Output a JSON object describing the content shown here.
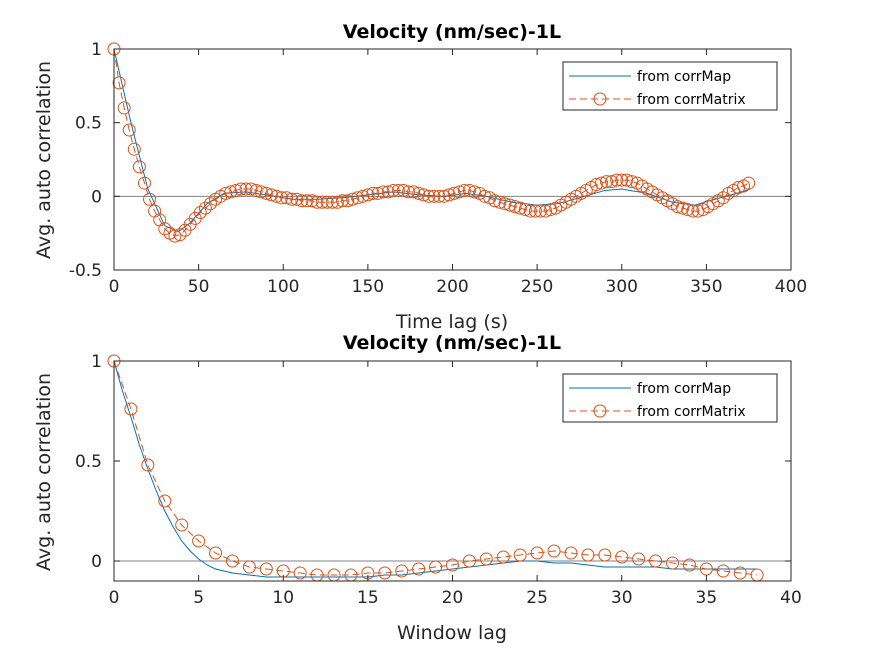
{
  "colors": {
    "corrMap": "#0072BD",
    "corrMatrix": "#D95319",
    "zero_line": "#808080",
    "axis": "#262626",
    "background": "#ffffff"
  },
  "chart_data": [
    {
      "type": "line",
      "title": "Velocity (nm/sec)-1L",
      "xlabel": "Time lag (s)",
      "ylabel": "Avg. auto correlation",
      "xlim": [
        0,
        400
      ],
      "ylim": [
        -0.5,
        1
      ],
      "xticks": [
        "0",
        "50",
        "100",
        "150",
        "200",
        "250",
        "300",
        "350",
        "400"
      ],
      "yticks": [
        "-0.5",
        "0",
        "0.5",
        "1"
      ],
      "legend": {
        "position": "top-right",
        "entries": [
          "from corrMap",
          "from corrMatrix"
        ]
      },
      "series": [
        {
          "name": "from corrMap",
          "style": "solid line",
          "x": [
            0,
            10,
            20,
            30,
            38,
            45,
            55,
            65,
            78,
            90,
            105,
            120,
            135,
            150,
            165,
            180,
            195,
            208,
            220,
            235,
            250,
            262,
            275,
            290,
            300,
            315,
            330,
            343,
            355,
            368,
            376
          ],
          "y": [
            1,
            0.5,
            0.05,
            -0.2,
            -0.24,
            -0.18,
            -0.05,
            0.02,
            0.03,
            0.01,
            -0.02,
            -0.02,
            -0.01,
            0.01,
            0.03,
            0.01,
            0.0,
            0.02,
            0.0,
            -0.04,
            -0.06,
            -0.05,
            -0.01,
            0.04,
            0.05,
            0.02,
            -0.04,
            -0.06,
            -0.02,
            0.02,
            0.05
          ]
        },
        {
          "name": "from corrMatrix",
          "style": "dashed line with circle markers",
          "x": [
            0,
            3,
            6,
            9,
            12,
            15,
            18,
            21,
            24,
            27,
            30,
            33,
            36,
            39,
            42,
            45,
            48,
            51,
            54,
            57,
            60,
            63,
            66,
            69,
            72,
            75,
            78,
            81,
            84,
            87,
            90,
            93,
            96,
            99,
            102,
            105,
            108,
            111,
            114,
            117,
            120,
            123,
            126,
            129,
            132,
            135,
            138,
            141,
            144,
            147,
            150,
            153,
            156,
            159,
            162,
            165,
            168,
            171,
            174,
            177,
            180,
            183,
            186,
            189,
            192,
            195,
            198,
            201,
            204,
            207,
            210,
            213,
            216,
            219,
            222,
            225,
            228,
            231,
            234,
            237,
            240,
            243,
            246,
            249,
            252,
            255,
            258,
            261,
            264,
            267,
            270,
            273,
            276,
            279,
            282,
            285,
            288,
            291,
            294,
            297,
            300,
            303,
            306,
            309,
            312,
            315,
            318,
            321,
            324,
            327,
            330,
            333,
            336,
            339,
            342,
            345,
            348,
            351,
            354,
            357,
            360,
            363,
            366,
            369,
            372,
            375
          ],
          "y": [
            1,
            0.77,
            0.6,
            0.45,
            0.32,
            0.2,
            0.09,
            -0.02,
            -0.1,
            -0.16,
            -0.22,
            -0.25,
            -0.27,
            -0.26,
            -0.23,
            -0.19,
            -0.15,
            -0.11,
            -0.08,
            -0.05,
            -0.02,
            0.0,
            0.02,
            0.03,
            0.04,
            0.05,
            0.05,
            0.05,
            0.04,
            0.03,
            0.02,
            0.01,
            0.0,
            -0.01,
            -0.01,
            -0.02,
            -0.02,
            -0.03,
            -0.03,
            -0.03,
            -0.04,
            -0.04,
            -0.04,
            -0.04,
            -0.04,
            -0.03,
            -0.03,
            -0.02,
            -0.01,
            0.0,
            0.01,
            0.02,
            0.02,
            0.03,
            0.03,
            0.04,
            0.04,
            0.04,
            0.03,
            0.03,
            0.02,
            0.01,
            0.0,
            0.0,
            0.0,
            0.0,
            0.01,
            0.02,
            0.03,
            0.04,
            0.04,
            0.03,
            0.02,
            0.0,
            -0.01,
            -0.03,
            -0.04,
            -0.05,
            -0.06,
            -0.07,
            -0.08,
            -0.09,
            -0.1,
            -0.1,
            -0.1,
            -0.1,
            -0.09,
            -0.08,
            -0.06,
            -0.04,
            -0.02,
            0.0,
            0.02,
            0.04,
            0.06,
            0.08,
            0.09,
            0.1,
            0.1,
            0.11,
            0.11,
            0.11,
            0.1,
            0.09,
            0.07,
            0.05,
            0.03,
            0.01,
            -0.01,
            -0.03,
            -0.05,
            -0.07,
            -0.08,
            -0.09,
            -0.1,
            -0.1,
            -0.09,
            -0.07,
            -0.05,
            -0.03,
            -0.01,
            0.02,
            0.04,
            0.06,
            0.07,
            0.09
          ]
        }
      ]
    },
    {
      "type": "line",
      "title": "Velocity (nm/sec)-1L",
      "xlabel": "Window lag",
      "ylabel": "Avg. auto correlation",
      "xlim": [
        0,
        40
      ],
      "ylim": [
        -0.1,
        1
      ],
      "xticks": [
        "0",
        "5",
        "10",
        "15",
        "20",
        "25",
        "30",
        "35",
        "40"
      ],
      "yticks": [
        "0",
        "0.5",
        "1"
      ],
      "legend": {
        "position": "top-right",
        "entries": [
          "from corrMap",
          "from corrMatrix"
        ]
      },
      "series": [
        {
          "name": "from corrMap",
          "style": "solid line",
          "x": [
            0,
            0.5,
            1,
            1.5,
            2,
            2.5,
            3,
            3.5,
            4,
            4.5,
            5,
            5.5,
            6,
            6.5,
            7,
            8,
            9,
            10,
            11,
            12,
            13,
            14,
            15,
            16,
            17,
            18,
            19,
            20,
            21,
            22,
            23,
            24,
            25,
            26,
            27,
            28,
            29,
            30,
            31,
            32,
            33,
            34,
            35,
            36,
            37,
            38
          ],
          "y": [
            1,
            0.85,
            0.72,
            0.58,
            0.46,
            0.35,
            0.25,
            0.17,
            0.1,
            0.05,
            0.01,
            -0.02,
            -0.04,
            -0.05,
            -0.06,
            -0.07,
            -0.08,
            -0.08,
            -0.08,
            -0.08,
            -0.08,
            -0.08,
            -0.08,
            -0.07,
            -0.07,
            -0.06,
            -0.05,
            -0.04,
            -0.03,
            -0.02,
            -0.01,
            0.0,
            0.0,
            -0.01,
            -0.01,
            -0.02,
            -0.03,
            -0.03,
            -0.03,
            -0.03,
            -0.04,
            -0.04,
            -0.04,
            -0.04,
            -0.04,
            -0.04
          ]
        },
        {
          "name": "from corrMatrix",
          "style": "dashed line with circle markers",
          "x": [
            0,
            1,
            2,
            3,
            4,
            5,
            6,
            7,
            8,
            9,
            10,
            11,
            12,
            13,
            14,
            15,
            16,
            17,
            18,
            19,
            20,
            21,
            22,
            23,
            24,
            25,
            26,
            27,
            28,
            29,
            30,
            31,
            32,
            33,
            34,
            35,
            36,
            37,
            38
          ],
          "y": [
            1,
            0.76,
            0.48,
            0.3,
            0.18,
            0.1,
            0.04,
            0.0,
            -0.03,
            -0.04,
            -0.05,
            -0.06,
            -0.07,
            -0.07,
            -0.07,
            -0.06,
            -0.06,
            -0.05,
            -0.04,
            -0.03,
            -0.02,
            0.0,
            0.01,
            0.02,
            0.03,
            0.04,
            0.05,
            0.04,
            0.03,
            0.03,
            0.02,
            0.01,
            0.0,
            -0.01,
            -0.02,
            -0.04,
            -0.05,
            -0.06,
            -0.07
          ]
        }
      ]
    }
  ]
}
